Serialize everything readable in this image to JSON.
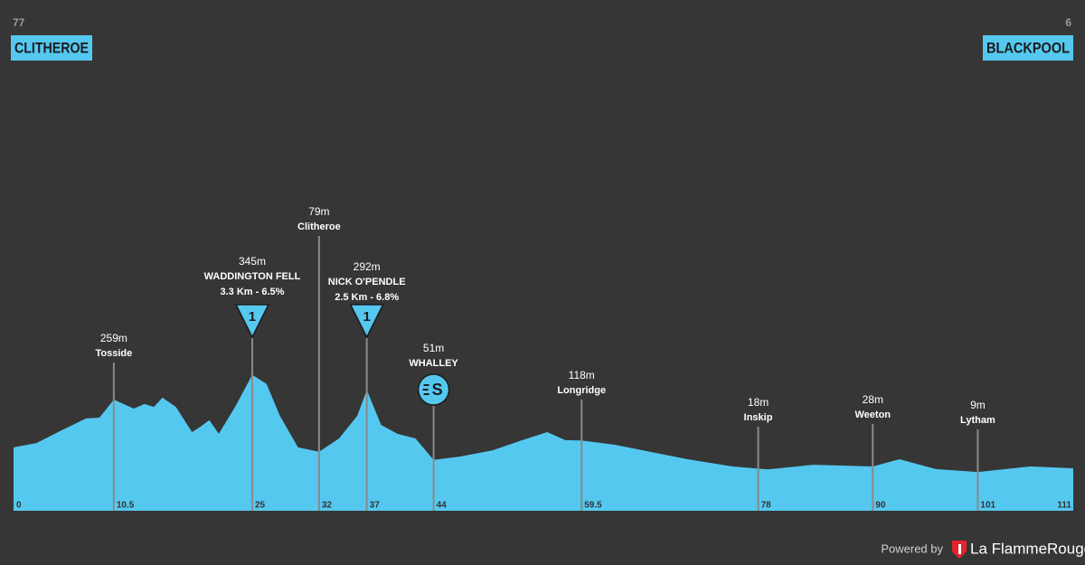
{
  "chart_data": {
    "type": "area",
    "start": {
      "number": "77",
      "name": "CLITHEROE"
    },
    "finish": {
      "number": "6",
      "name": "BLACKPOOL"
    },
    "color": "#55c8f0",
    "xlim": [
      0,
      111
    ],
    "xticks": [
      0,
      10.5,
      25,
      32,
      37,
      44,
      59.5,
      78,
      90,
      101,
      111
    ],
    "profile": {
      "km": [
        0,
        2.4,
        5.2,
        7.6,
        9,
        10.5,
        12.6,
        13.7,
        14.7,
        15.6,
        17,
        18.7,
        19.6,
        20.5,
        21.5,
        23.2,
        25,
        26.5,
        27.9,
        29.8,
        32,
        34.1,
        36,
        37,
        38.5,
        40.2,
        42.1,
        44,
        46.9,
        50.2,
        53,
        55.9,
        57.8,
        59.5,
        63,
        66.8,
        70.6,
        75.3,
        79,
        83.8,
        90,
        92.8,
        96.6,
        101,
        106.5,
        111
      ],
      "elevation": [
        94,
        109,
        156,
        194,
        197,
        259,
        228,
        244,
        234,
        266,
        234,
        147,
        166,
        188,
        141,
        234,
        345,
        313,
        203,
        94,
        79,
        125,
        203,
        292,
        172,
        141,
        125,
        51,
        63,
        84,
        116,
        147,
        119,
        118,
        103,
        78,
        53,
        28,
        18,
        34,
        28,
        53,
        19,
        9,
        28,
        22
      ]
    },
    "waypoints": [
      {
        "name": "Tosside",
        "values": 259,
        "value_labels": "259m"
      },
      {
        "name": "WADDINGTON FELL",
        "values": 345,
        "value_labels": "345m",
        "climb": "3.3 Km - 6.5%",
        "category": "1"
      },
      {
        "name": "Clitheroe",
        "values": 79,
        "value_labels": "79m"
      },
      {
        "name": "NICK O'PENDLE",
        "values": 292,
        "value_labels": "292m",
        "climb": "2.5 Km - 6.8%",
        "category": "1"
      },
      {
        "name": "WHALLEY",
        "values": 51,
        "value_labels": "51m",
        "sprint": "S"
      },
      {
        "name": "Longridge",
        "values": 118,
        "value_labels": "118m"
      },
      {
        "name": "Inskip",
        "values": 18,
        "value_labels": "18m"
      },
      {
        "name": "Weeton",
        "values": 28,
        "value_labels": "28m"
      },
      {
        "name": "Lytham",
        "values": 9,
        "value_labels": "9m"
      }
    ],
    "footer": {
      "prefix": "Powered by",
      "brand": "La FlammeRouge"
    }
  }
}
